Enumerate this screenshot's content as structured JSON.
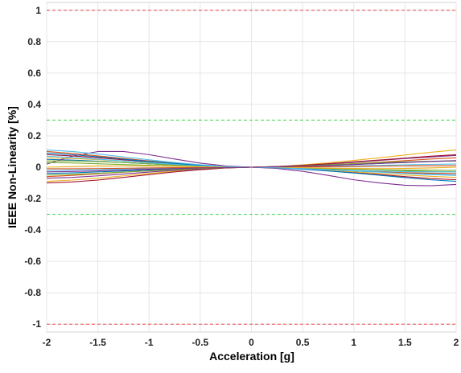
{
  "chart_data": {
    "type": "line",
    "title": "",
    "xlabel": "Acceleration [g]",
    "ylabel": "IEEE Non-Linearity [%]",
    "xlim": [
      -2,
      2
    ],
    "ylim": [
      -1.05,
      1.05
    ],
    "xticks": [
      -2,
      -1.5,
      -1,
      -0.5,
      0,
      0.5,
      1,
      1.5,
      2
    ],
    "yticks": [
      1,
      0.8,
      0.6,
      0.4,
      0.2,
      0,
      -0.2,
      -0.4,
      -0.6,
      -0.8,
      -1
    ],
    "xtick_labels": [
      "-2",
      "-1.5",
      "-1",
      "-0.5",
      "0",
      "0.5",
      "1",
      "1.5",
      "2"
    ],
    "ytick_labels": [
      "1",
      "0.8",
      "0.6",
      "0.4",
      "0.2",
      "0",
      "-0.2",
      "-0.4",
      "-0.6",
      "-0.8",
      "-1"
    ],
    "grid": true,
    "legend": "none",
    "reference_lines": [
      {
        "y": 1,
        "color": "#e8474b",
        "style": "dashed"
      },
      {
        "y": 0.3,
        "color": "#3fd24a",
        "style": "dashed"
      },
      {
        "y": -0.3,
        "color": "#3fd24a",
        "style": "dashed"
      },
      {
        "y": -1,
        "color": "#e8474b",
        "style": "dashed"
      }
    ],
    "x": [
      -2,
      -1.75,
      -1.5,
      -1.25,
      -1,
      -0.75,
      -0.5,
      -0.25,
      0,
      0.25,
      0.5,
      0.75,
      1,
      1.25,
      1.5,
      1.75,
      2
    ],
    "series": [
      {
        "color": "#0072bd",
        "values": [
          0.05,
          0.045,
          0.038,
          0.03,
          0.022,
          0.014,
          0.008,
          0.003,
          0,
          -0.003,
          -0.008,
          -0.014,
          -0.022,
          -0.03,
          -0.038,
          -0.045,
          -0.05
        ]
      },
      {
        "color": "#d95319",
        "values": [
          -0.06,
          -0.052,
          -0.042,
          -0.032,
          -0.023,
          -0.015,
          -0.008,
          -0.003,
          0,
          0.003,
          0.008,
          0.015,
          0.023,
          0.032,
          0.042,
          0.052,
          0.06
        ]
      },
      {
        "color": "#edb120",
        "values": [
          -0.09,
          -0.082,
          -0.07,
          -0.055,
          -0.04,
          -0.026,
          -0.014,
          -0.005,
          0,
          0.005,
          0.015,
          0.028,
          0.043,
          0.06,
          0.078,
          0.095,
          0.11
        ]
      },
      {
        "color": "#7e2f8e",
        "values": [
          0.02,
          0.07,
          0.1,
          0.1,
          0.08,
          0.052,
          0.026,
          0.008,
          0,
          -0.008,
          -0.026,
          -0.052,
          -0.08,
          -0.1,
          -0.115,
          -0.118,
          -0.11
        ]
      },
      {
        "color": "#77ac30",
        "values": [
          0.03,
          0.027,
          0.022,
          0.017,
          0.012,
          0.008,
          0.004,
          0.001,
          0,
          -0.001,
          -0.004,
          -0.008,
          -0.012,
          -0.017,
          -0.022,
          -0.027,
          -0.03
        ]
      },
      {
        "color": "#4dbeee",
        "values": [
          -0.02,
          -0.018,
          -0.015,
          -0.012,
          -0.009,
          -0.006,
          -0.003,
          -0.001,
          0,
          0.001,
          0.003,
          0.006,
          0.009,
          0.012,
          0.015,
          0.018,
          0.02
        ]
      },
      {
        "color": "#a2142f",
        "values": [
          0.08,
          0.072,
          0.06,
          0.047,
          0.034,
          0.022,
          0.012,
          0.004,
          0,
          -0.004,
          -0.012,
          -0.022,
          -0.034,
          -0.047,
          -0.06,
          -0.072,
          -0.08
        ]
      },
      {
        "color": "#0072bd",
        "values": [
          -0.04,
          -0.036,
          -0.03,
          -0.024,
          -0.018,
          -0.012,
          -0.006,
          -0.002,
          0,
          0.002,
          0.006,
          0.012,
          0.018,
          0.024,
          0.03,
          0.036,
          0.04
        ]
      },
      {
        "color": "#d95319",
        "values": [
          0.1,
          0.088,
          0.072,
          0.056,
          0.04,
          0.026,
          0.014,
          0.005,
          0,
          -0.004,
          -0.01,
          -0.017,
          -0.024,
          -0.03,
          -0.035,
          -0.038,
          -0.04
        ]
      },
      {
        "color": "#edb120",
        "values": [
          0.06,
          0.055,
          0.048,
          0.04,
          0.03,
          0.02,
          0.011,
          0.004,
          0,
          -0.004,
          -0.011,
          -0.02,
          -0.03,
          -0.04,
          -0.05,
          -0.058,
          -0.065
        ]
      },
      {
        "color": "#7e2f8e",
        "values": [
          -0.07,
          -0.065,
          -0.055,
          -0.043,
          -0.031,
          -0.02,
          -0.011,
          -0.004,
          0,
          0.004,
          0.011,
          0.02,
          0.031,
          0.043,
          0.055,
          0.065,
          0.075
        ]
      },
      {
        "color": "#77ac30",
        "values": [
          0.04,
          0.04,
          0.036,
          0.03,
          0.022,
          0.014,
          0.007,
          0.002,
          0,
          -0.002,
          -0.006,
          -0.01,
          -0.013,
          -0.016,
          -0.018,
          -0.019,
          -0.02
        ]
      },
      {
        "color": "#4dbeee",
        "values": [
          0.07,
          0.062,
          0.051,
          0.04,
          0.029,
          0.019,
          0.01,
          0.003,
          0,
          -0.003,
          -0.009,
          -0.016,
          -0.024,
          -0.032,
          -0.04,
          -0.047,
          -0.052
        ]
      },
      {
        "color": "#a2142f",
        "values": [
          -0.1,
          -0.094,
          -0.082,
          -0.065,
          -0.047,
          -0.03,
          -0.016,
          -0.005,
          0,
          0.004,
          0.012,
          0.022,
          0.034,
          0.046,
          0.058,
          0.07,
          0.08
        ]
      },
      {
        "color": "#0072bd",
        "values": [
          0.09,
          0.08,
          0.066,
          0.051,
          0.037,
          0.024,
          0.013,
          0.004,
          0,
          -0.004,
          -0.013,
          -0.024,
          -0.037,
          -0.051,
          -0.066,
          -0.08,
          -0.09
        ]
      },
      {
        "color": "#d95319",
        "values": [
          -0.01,
          -0.01,
          -0.009,
          -0.007,
          -0.005,
          -0.003,
          -0.002,
          -0.001,
          0,
          0.001,
          0.002,
          0.003,
          0.005,
          0.007,
          0.009,
          0.01,
          0.01
        ]
      },
      {
        "color": "#edb120",
        "values": [
          0.0,
          0.005,
          0.008,
          0.009,
          0.008,
          0.006,
          0.003,
          0.001,
          0,
          -0.001,
          -0.003,
          -0.006,
          -0.008,
          -0.009,
          -0.008,
          -0.005,
          0.0
        ]
      },
      {
        "color": "#77ac30",
        "values": [
          -0.05,
          -0.046,
          -0.039,
          -0.031,
          -0.023,
          -0.015,
          -0.008,
          -0.003,
          0,
          0.003,
          0.008,
          0.015,
          0.022,
          0.029,
          0.034,
          0.038,
          0.04
        ]
      },
      {
        "color": "#4dbeee",
        "values": [
          0.11,
          0.1,
          0.084,
          0.066,
          0.047,
          0.03,
          0.016,
          0.005,
          0,
          -0.004,
          -0.01,
          -0.016,
          -0.021,
          -0.025,
          -0.028,
          -0.03,
          -0.03
        ]
      },
      {
        "color": "#7e2f8e",
        "values": [
          -0.03,
          -0.027,
          -0.023,
          -0.018,
          -0.013,
          -0.009,
          -0.005,
          -0.002,
          0,
          0.002,
          0.006,
          0.011,
          0.017,
          0.024,
          0.031,
          0.037,
          0.042
        ]
      }
    ]
  }
}
